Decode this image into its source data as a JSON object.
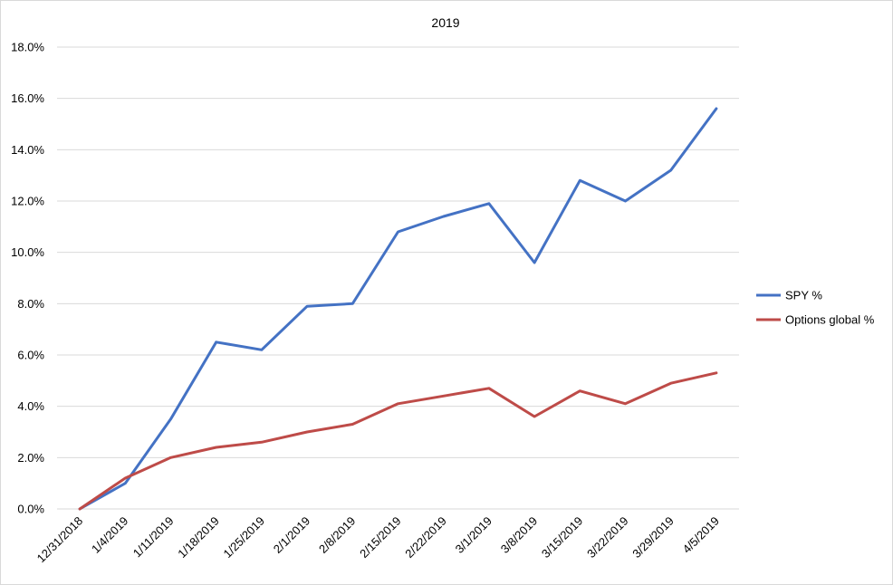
{
  "chart_data": {
    "type": "line",
    "title": "2019",
    "xlabel": "",
    "ylabel": "",
    "categories": [
      "12/31/2018",
      "1/4/2019",
      "1/11/2019",
      "1/18/2019",
      "1/25/2019",
      "2/1/2019",
      "2/8/2019",
      "2/15/2019",
      "2/22/2019",
      "3/1/2019",
      "3/8/2019",
      "3/15/2019",
      "3/22/2019",
      "3/29/2019",
      "4/5/2019"
    ],
    "ylim": [
      0,
      18
    ],
    "yticks": [
      "0.0%",
      "2.0%",
      "4.0%",
      "6.0%",
      "8.0%",
      "10.0%",
      "12.0%",
      "14.0%",
      "16.0%",
      "18.0%"
    ],
    "grid": true,
    "legend_position": "right",
    "series": [
      {
        "name": "SPY %",
        "color": "#4472c4",
        "values": [
          0.0,
          1.0,
          3.5,
          6.5,
          6.2,
          7.9,
          8.0,
          10.8,
          11.4,
          11.9,
          9.6,
          12.8,
          12.0,
          13.2,
          15.6
        ]
      },
      {
        "name": "Options global %",
        "color": "#be4b48",
        "values": [
          0.0,
          1.2,
          2.0,
          2.4,
          2.6,
          3.0,
          3.3,
          4.1,
          4.4,
          4.7,
          3.6,
          4.6,
          4.1,
          4.9,
          5.3
        ]
      }
    ]
  }
}
